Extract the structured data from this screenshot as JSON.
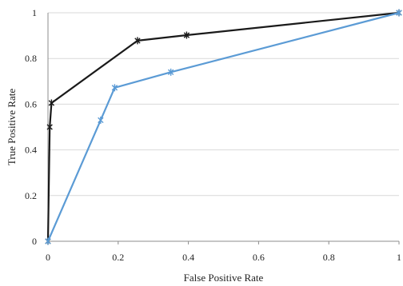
{
  "chart_data": {
    "type": "line",
    "title": "",
    "xlabel": "False Positive Rate",
    "ylabel": "True Positive Rate",
    "xlim": [
      0,
      1
    ],
    "ylim": [
      0,
      1
    ],
    "x_ticks": [
      0,
      0.2,
      0.4,
      0.6,
      0.8,
      1
    ],
    "x_tick_labels": [
      "0",
      "0.2",
      "0.4",
      "0.6",
      "0.8",
      "1"
    ],
    "y_ticks": [
      0,
      0.2,
      0.4,
      0.6,
      0.8,
      1
    ],
    "y_tick_labels": [
      "0",
      "0.2",
      "0.4",
      "0.6",
      "0.8",
      "1"
    ],
    "grid": "horizontal",
    "legend": "none",
    "series": [
      {
        "color": "#1a1a1a",
        "marker": "asterisk",
        "x": [
          0,
          0.005,
          0.01,
          0.255,
          0.395,
          1
        ],
        "y": [
          0,
          0.5,
          0.605,
          0.878,
          0.902,
          1
        ]
      },
      {
        "color": "#5b9bd5",
        "marker": "asterisk",
        "x": [
          0,
          0.15,
          0.19,
          0.35,
          1
        ],
        "y": [
          0,
          0.53,
          0.672,
          0.74,
          1
        ]
      }
    ]
  }
}
